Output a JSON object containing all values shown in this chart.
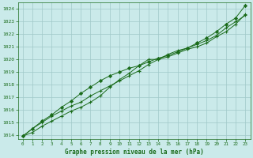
{
  "background_color": "#caeaea",
  "plot_bg_color": "#caeaea",
  "grid_color": "#a0c8c8",
  "line_color": "#1a6b1a",
  "xlabel": "Graphe pression niveau de la mer (hPa)",
  "xlim": [
    -0.5,
    23.5
  ],
  "ylim": [
    1013.7,
    1024.5
  ],
  "yticks": [
    1014,
    1015,
    1016,
    1017,
    1018,
    1019,
    1020,
    1021,
    1022,
    1023,
    1024
  ],
  "xticks": [
    0,
    1,
    2,
    3,
    4,
    5,
    6,
    7,
    8,
    9,
    10,
    11,
    12,
    13,
    14,
    15,
    16,
    17,
    18,
    19,
    20,
    21,
    22,
    23
  ],
  "hours": [
    0,
    1,
    2,
    3,
    4,
    5,
    6,
    7,
    8,
    9,
    10,
    11,
    12,
    13,
    14,
    15,
    16,
    17,
    18,
    19,
    20,
    21,
    22,
    23
  ],
  "line1": [
    1013.9,
    1014.2,
    1014.7,
    1015.1,
    1015.5,
    1015.9,
    1016.2,
    1016.6,
    1017.1,
    1017.8,
    1018.4,
    1018.9,
    1019.5,
    1020.0,
    1020.0,
    1020.2,
    1020.5,
    1020.8,
    1021.0,
    1021.3,
    1021.8,
    1022.2,
    1022.8,
    1023.6
  ],
  "line2": [
    1013.9,
    1014.5,
    1015.0,
    1015.5,
    1015.9,
    1016.3,
    1016.6,
    1017.1,
    1017.5,
    1017.9,
    1018.3,
    1018.7,
    1019.1,
    1019.6,
    1020.0,
    1020.4,
    1020.7,
    1020.9,
    1021.2,
    1021.5,
    1021.9,
    1022.5,
    1023.0,
    1023.5
  ],
  "line3": [
    1013.9,
    1014.5,
    1015.1,
    1015.6,
    1016.2,
    1016.7,
    1017.3,
    1017.8,
    1018.3,
    1018.7,
    1019.0,
    1019.3,
    1019.5,
    1019.8,
    1020.1,
    1020.3,
    1020.6,
    1020.9,
    1021.3,
    1021.7,
    1022.2,
    1022.8,
    1023.3,
    1024.3
  ]
}
